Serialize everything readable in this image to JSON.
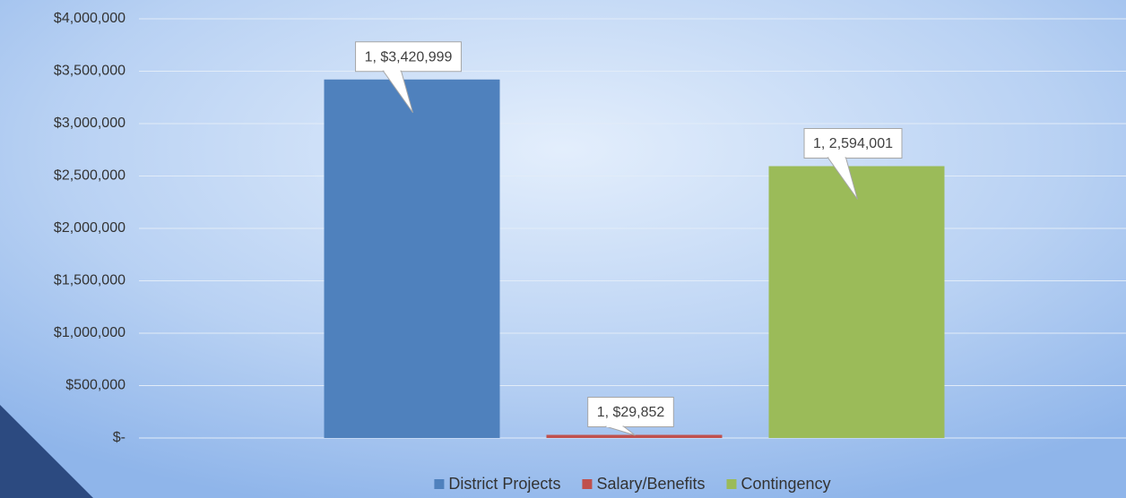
{
  "chart_data": {
    "type": "bar",
    "categories": [
      null
    ],
    "series": [
      {
        "name": "District Projects",
        "color": "#4f81bd",
        "values": [
          3420999
        ],
        "value_labels": [
          "1, $3,420,999"
        ]
      },
      {
        "name": "Salary/Benefits",
        "color": "#c0504d",
        "values": [
          29852
        ],
        "value_labels": [
          "1, $29,852"
        ]
      },
      {
        "name": "Contingency",
        "color": "#9bbb59",
        "values": [
          2594001
        ],
        "value_labels": [
          "1, 2,594,001"
        ]
      }
    ],
    "ylim": [
      0,
      4000000
    ],
    "yticks": [
      {
        "value": 0,
        "label": "$-"
      },
      {
        "value": 500000,
        "label": "$500,000"
      },
      {
        "value": 1000000,
        "label": "$1,000,000"
      },
      {
        "value": 1500000,
        "label": "$1,500,000"
      },
      {
        "value": 2000000,
        "label": "$2,000,000"
      },
      {
        "value": 2500000,
        "label": "$2,500,000"
      },
      {
        "value": 3000000,
        "label": "$3,000,000"
      },
      {
        "value": 3500000,
        "label": "$3,500,000"
      },
      {
        "value": 4000000,
        "label": "$4,000,000"
      }
    ],
    "grid": true,
    "legend": "bottom"
  }
}
